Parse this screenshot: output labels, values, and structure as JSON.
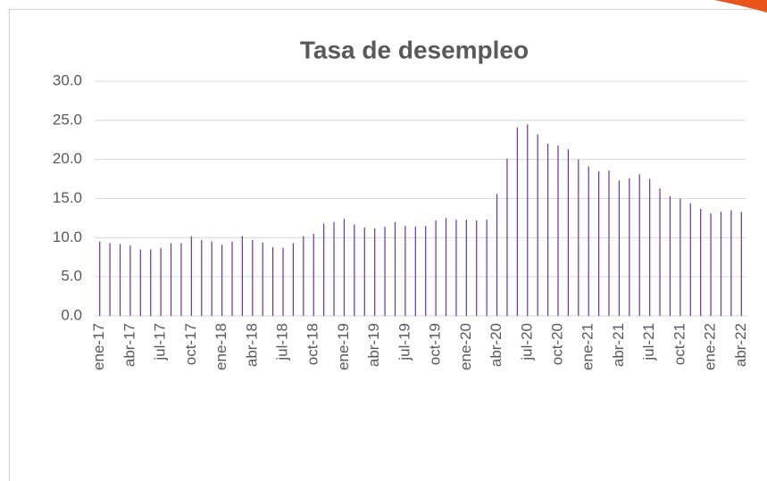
{
  "chart_data": {
    "type": "bar",
    "title": "Tasa de desempleo",
    "categories": [
      "ene-17",
      null,
      null,
      "abr-17",
      null,
      null,
      "jul-17",
      null,
      null,
      "oct-17",
      null,
      null,
      "ene-18",
      null,
      null,
      "abr-18",
      null,
      null,
      "jul-18",
      null,
      null,
      "oct-18",
      null,
      null,
      "ene-19",
      null,
      null,
      "abr-19",
      null,
      null,
      "jul-19",
      null,
      null,
      "oct-19",
      null,
      null,
      "ene-20",
      null,
      null,
      "abr-20",
      null,
      null,
      "jul-20",
      null,
      null,
      "oct-20",
      null,
      null,
      "ene-21",
      null,
      null,
      "abr-21",
      null,
      null,
      "jul-21",
      null,
      null,
      "oct-21",
      null,
      null,
      "ene-22",
      null,
      null,
      "abr-22"
    ],
    "values": [
      9.5,
      9.3,
      9.2,
      9.0,
      8.5,
      8.5,
      8.7,
      9.3,
      9.3,
      10.2,
      9.7,
      9.5,
      9.1,
      9.5,
      10.2,
      9.7,
      9.4,
      8.8,
      8.7,
      9.3,
      10.2,
      10.5,
      11.8,
      12.0,
      12.4,
      11.7,
      11.3,
      11.2,
      11.4,
      12.0,
      11.5,
      11.4,
      11.5,
      12.2,
      12.5,
      12.3,
      12.3,
      12.2,
      12.3,
      15.6,
      20.1,
      24.1,
      24.5,
      23.2,
      22.0,
      21.8,
      21.3,
      20.0,
      19.1,
      18.5,
      18.6,
      17.3,
      17.6,
      18.1,
      17.5,
      16.3,
      15.3,
      15.0,
      14.4,
      13.7,
      13.1,
      13.3,
      13.5,
      13.3
    ],
    "color": "#7030a0",
    "ylim": [
      0,
      30
    ],
    "yticks": [
      {
        "value": 0,
        "label": "0.0"
      },
      {
        "value": 5,
        "label": "5.0"
      },
      {
        "value": 10,
        "label": "10.0"
      },
      {
        "value": 15,
        "label": "15.0"
      },
      {
        "value": 20,
        "label": "20.0"
      },
      {
        "value": 25,
        "label": "25.0"
      },
      {
        "value": 30,
        "label": "30.0"
      }
    ],
    "grid": true
  }
}
